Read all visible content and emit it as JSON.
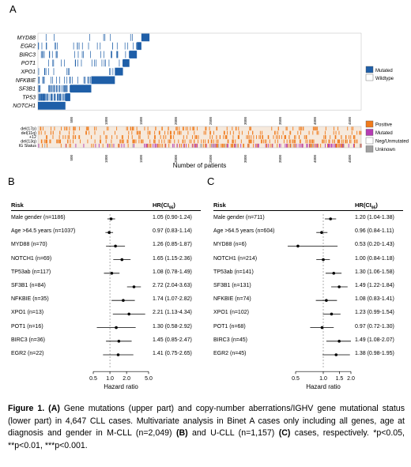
{
  "panel_a": {
    "letter": "A",
    "genes": [
      "MYD88",
      "EGR2",
      "BIRC3",
      "POT1",
      "XPO1",
      "NFKBIE",
      "SF3B1",
      "TP53",
      "NOTCH1"
    ],
    "legend": {
      "mutated": "Mutated",
      "wildtype": "Wildtype"
    },
    "lower_rows": [
      "del(17p)",
      "del(11q)",
      "+12",
      "del(13q)",
      "IG Status"
    ],
    "lower_legend": [
      "Positive",
      "Mutated",
      "Neg/Unmutated",
      "Unknown"
    ],
    "x_ticks": [
      "500",
      "1000",
      "1500",
      "2000",
      "2500",
      "3000",
      "3500",
      "4000",
      "4500"
    ],
    "x_label": "Number of patients",
    "colors": {
      "mutated": "#1f5fa8",
      "positive": "#f07b1c",
      "igmut": "#b53cb3",
      "neg": "#ffffff",
      "unknown": "#a0a0a0"
    }
  },
  "panel_b": {
    "letter": "B",
    "risk_header": "Risk",
    "hr_header": "HR(CI",
    "hr_sub": "95",
    "hr_close": ")",
    "rows": [
      {
        "label": "Male gender (n=1186)",
        "hr_text": "1.05 (0.90-1.24)"
      },
      {
        "label": "Age >64.5 years (n=1037)",
        "hr_text": "0.97 (0.83-1.14)"
      },
      {
        "label": "MYD88 (n=70)",
        "hr_text": "1.26 (0.85-1.87)"
      },
      {
        "label": "NOTCH1 (n=69)",
        "hr_text": "1.65 (1.15-2.36)"
      },
      {
        "label": "TP53ab (n=117)",
        "hr_text": "1.08 (0.78-1.49)"
      },
      {
        "label": "SF3B1 (n=84)",
        "hr_text": "2.72 (2.04-3.63)"
      },
      {
        "label": "NFKBIE (n=35)",
        "hr_text": "1.74 (1.07-2.82)"
      },
      {
        "label": "XPO1 (n=13)",
        "hr_text": "2.21 (1.13-4.34)"
      },
      {
        "label": "POT1 (n=16)",
        "hr_text": "1.30 (0.58-2.92)"
      },
      {
        "label": "BIRC3 (n=36)",
        "hr_text": "1.45 (0.85-2.47)"
      },
      {
        "label": "EGR2 (n=22)",
        "hr_text": "1.41 (0.75-2.65)"
      }
    ],
    "ticks": [
      "0.5",
      "1.0",
      "2.0",
      "5.0"
    ],
    "x_label": "Hazard ratio"
  },
  "panel_c": {
    "letter": "C",
    "risk_header": "Risk",
    "hr_header": "HR(CI",
    "hr_sub": "95",
    "hr_close": ")",
    "rows": [
      {
        "label": "Male gender (n=711)",
        "hr_text": "1.20 (1.04-1.38)"
      },
      {
        "label": "Age >64.5 years (n=604)",
        "hr_text": "0.96 (0.84-1.11)"
      },
      {
        "label": "MYD88 (n=6)",
        "hr_text": "0.53 (0.20-1.43)"
      },
      {
        "label": "NOTCH1 (n=214)",
        "hr_text": "1.00 (0.84-1.18)"
      },
      {
        "label": "TP53ab (n=141)",
        "hr_text": "1.30 (1.06-1.58)"
      },
      {
        "label": "SF3B1 (n=131)",
        "hr_text": "1.49 (1.22-1.84)"
      },
      {
        "label": "NFKBIE (n=74)",
        "hr_text": "1.08 (0.83-1.41)"
      },
      {
        "label": "XPO1 (n=102)",
        "hr_text": "1.23 (0.99-1.54)"
      },
      {
        "label": "POT1 (n=68)",
        "hr_text": "0.97 (0.72-1.30)"
      },
      {
        "label": "BIRC3 (n=45)",
        "hr_text": "1.49 (1.08-2.07)"
      },
      {
        "label": "EGR2 (n=45)",
        "hr_text": "1.38 (0.98-1.95)"
      }
    ],
    "ticks": [
      "0.5",
      "1.0",
      "1.5",
      "2.0"
    ],
    "x_label": "Hazard ratio"
  },
  "chart_data": [
    {
      "type": "scatter",
      "panel": "B",
      "xlabel": "Hazard ratio",
      "xscale": "log",
      "xlim": [
        0.5,
        5.0
      ],
      "categories": [
        "Male gender (n=1186)",
        "Age >64.5 years (n=1037)",
        "MYD88 (n=70)",
        "NOTCH1 (n=69)",
        "TP53ab (n=117)",
        "SF3B1 (n=84)",
        "NFKBIE (n=35)",
        "XPO1 (n=13)",
        "POT1 (n=16)",
        "BIRC3 (n=36)",
        "EGR2 (n=22)"
      ],
      "hr": [
        1.05,
        0.97,
        1.26,
        1.65,
        1.08,
        2.72,
        1.74,
        2.21,
        1.3,
        1.45,
        1.41
      ],
      "lower": [
        0.9,
        0.83,
        0.85,
        1.15,
        0.78,
        2.04,
        1.07,
        1.13,
        0.58,
        0.85,
        0.75
      ],
      "upper": [
        1.24,
        1.14,
        1.87,
        2.36,
        1.49,
        3.63,
        2.82,
        4.34,
        2.92,
        2.47,
        2.65
      ]
    },
    {
      "type": "scatter",
      "panel": "C",
      "xlabel": "Hazard ratio",
      "xscale": "log",
      "xlim": [
        0.5,
        2.0
      ],
      "categories": [
        "Male gender (n=711)",
        "Age >64.5 years (n=604)",
        "MYD88 (n=6)",
        "NOTCH1 (n=214)",
        "TP53ab (n=141)",
        "SF3B1 (n=131)",
        "NFKBIE (n=74)",
        "XPO1 (n=102)",
        "POT1 (n=68)",
        "BIRC3 (n=45)",
        "EGR2 (n=45)"
      ],
      "hr": [
        1.2,
        0.96,
        0.53,
        1.0,
        1.3,
        1.49,
        1.08,
        1.23,
        0.97,
        1.49,
        1.38
      ],
      "lower": [
        1.04,
        0.84,
        0.2,
        0.84,
        1.06,
        1.22,
        0.83,
        0.99,
        0.72,
        1.08,
        0.98
      ],
      "upper": [
        1.38,
        1.11,
        1.43,
        1.18,
        1.58,
        1.84,
        1.41,
        1.54,
        1.3,
        2.07,
        1.95
      ]
    }
  ],
  "caption": {
    "fig": "Figure 1.",
    "a": "(A)",
    "t1": " Gene mutations (upper part) and copy-number aberrations/IGHV gene mutational status (lower part) in 4,647 CLL cases. Multivariate analysis in Binet A cases only including all genes, age at diagnosis and gender in M-CLL (n=2,049) ",
    "b": "(B)",
    "t2": " and U-CLL (n=1,157) ",
    "c": "(C)",
    "t3": " cases, respectively. *p<0.05, **p<0.01, ***p<0.001."
  }
}
